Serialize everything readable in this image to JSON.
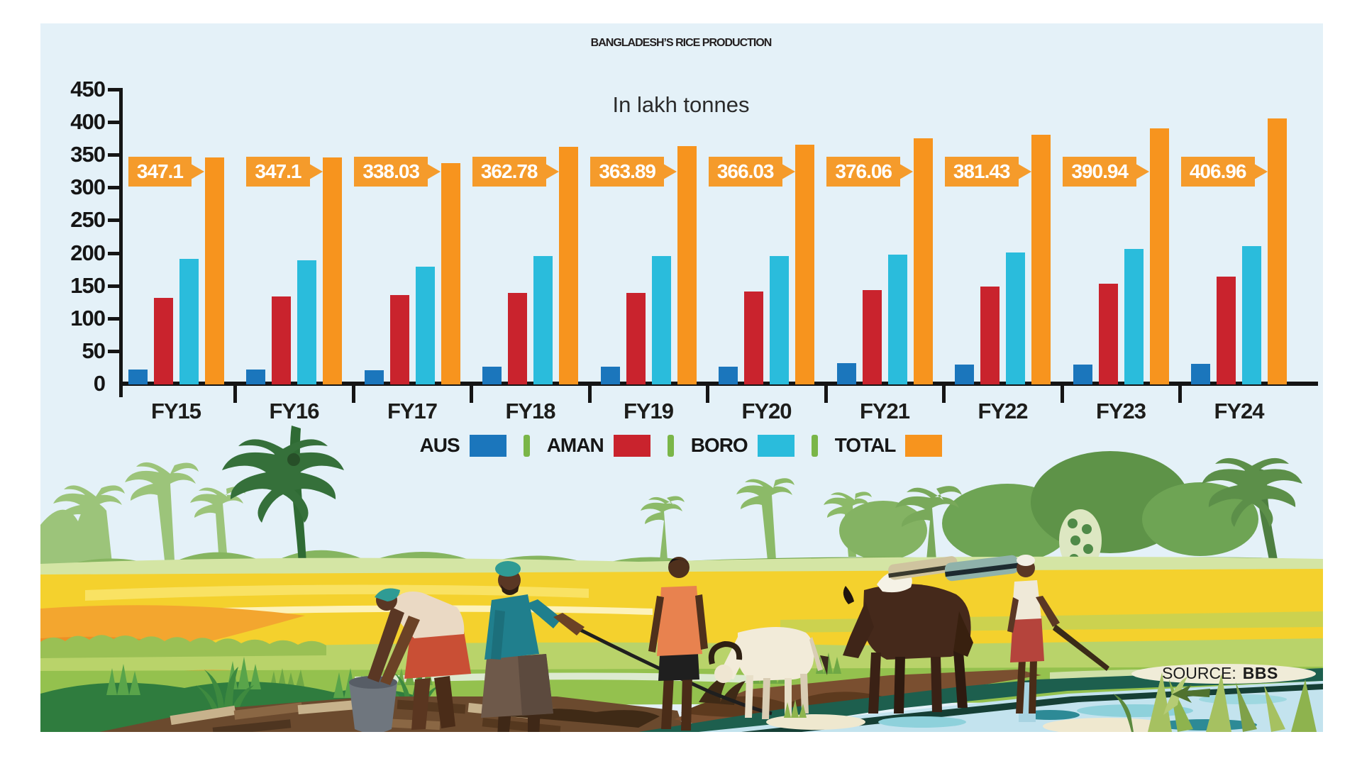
{
  "title": "BANGLADESH’S RICE PRODUCTION",
  "subtitle": "In lakh tonnes",
  "source": {
    "label": "SOURCE:",
    "value": "BBS"
  },
  "legend": [
    {
      "label": "AUS",
      "color": "#1b76bc"
    },
    {
      "label": "AMAN",
      "color": "#c9232d"
    },
    {
      "label": "BORO",
      "color": "#2abcdc"
    },
    {
      "label": "TOTAL",
      "color": "#f7941e"
    }
  ],
  "colors": {
    "panel_bg": "#e4f1f8",
    "axis": "#151515",
    "callout_bg": "#f59b2b",
    "callout_text": "#ffffff",
    "legend_separator": "#7ab648",
    "title_text": "#231f20"
  },
  "chart_data": {
    "type": "bar",
    "unit": "lakh tonnes",
    "title": "BANGLADESH’S RICE PRODUCTION",
    "subtitle": "In lakh tonnes",
    "categories": [
      "FY15",
      "FY16",
      "FY17",
      "FY18",
      "FY19",
      "FY20",
      "FY21",
      "FY22",
      "FY23",
      "FY24"
    ],
    "series": [
      {
        "name": "AUS",
        "color": "#1b76bc",
        "values": [
          23.2,
          22.9,
          21.4,
          27.1,
          27.6,
          27.6,
          32.9,
          30.0,
          30.1,
          31.1
        ]
      },
      {
        "name": "AMAN",
        "color": "#c9232d",
        "values": [
          131.9,
          134.8,
          136.6,
          139.9,
          140.3,
          142.4,
          144.4,
          149.6,
          153.6,
          164.9
        ]
      },
      {
        "name": "BORO",
        "color": "#2abcdc",
        "values": [
          192.0,
          189.4,
          180.0,
          195.8,
          196.0,
          196.0,
          198.8,
          201.8,
          207.2,
          211.0
        ]
      },
      {
        "name": "TOTAL",
        "color": "#f7941e",
        "values": [
          347.1,
          347.1,
          338.03,
          362.78,
          363.89,
          366.03,
          376.06,
          381.43,
          390.94,
          406.96
        ]
      }
    ],
    "total_labels": [
      "347.1",
      "347.1",
      "338.03",
      "362.78",
      "363.89",
      "366.03",
      "376.06",
      "381.43",
      "390.94",
      "406.96"
    ],
    "yticks": [
      0,
      50,
      100,
      150,
      200,
      250,
      300,
      350,
      400,
      450
    ],
    "ylim": [
      0,
      450
    ],
    "grid": false,
    "legend_position": "bottom",
    "source": "SOURCE: BBS"
  }
}
